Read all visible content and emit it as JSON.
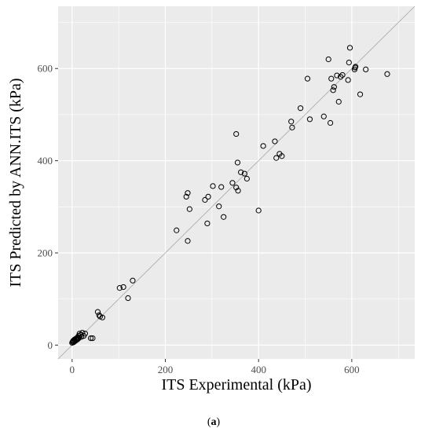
{
  "chart_data": {
    "type": "scatter",
    "xlabel": "ITS Experimental (kPa)",
    "ylabel": "ITS Predicted by ANN.ITS (kPa)",
    "caption_prefix": "(",
    "caption_letter": "a",
    "caption_suffix": ")",
    "xlim": [
      -30,
      735
    ],
    "ylim": [
      -30,
      735
    ],
    "x_ticks": [
      0,
      200,
      400,
      600
    ],
    "y_ticks": [
      0,
      200,
      400,
      600
    ],
    "grid": true,
    "reference_line": "y = x",
    "colors": {
      "panel": "#ebebeb",
      "grid": "#ffffff",
      "reference_line": "#a6a6a6",
      "points": "#000000"
    },
    "points": [
      [
        0,
        5
      ],
      [
        1,
        7
      ],
      [
        2,
        9
      ],
      [
        3,
        6
      ],
      [
        3,
        10
      ],
      [
        4,
        8
      ],
      [
        5,
        12
      ],
      [
        6,
        10
      ],
      [
        7,
        9
      ],
      [
        8,
        14
      ],
      [
        9,
        13
      ],
      [
        10,
        15
      ],
      [
        11,
        12
      ],
      [
        12,
        17
      ],
      [
        13,
        14
      ],
      [
        14,
        20
      ],
      [
        15,
        16
      ],
      [
        16,
        25
      ],
      [
        18,
        22
      ],
      [
        20,
        18
      ],
      [
        22,
        27
      ],
      [
        25,
        20
      ],
      [
        28,
        25
      ],
      [
        40,
        15
      ],
      [
        44,
        15
      ],
      [
        55,
        72
      ],
      [
        58,
        65
      ],
      [
        60,
        62
      ],
      [
        65,
        60
      ],
      [
        102,
        124
      ],
      [
        110,
        126
      ],
      [
        120,
        102
      ],
      [
        130,
        140
      ],
      [
        224,
        249
      ],
      [
        245,
        322
      ],
      [
        248,
        330
      ],
      [
        248,
        226
      ],
      [
        252,
        295
      ],
      [
        285,
        315
      ],
      [
        290,
        264
      ],
      [
        292,
        322
      ],
      [
        302,
        345
      ],
      [
        315,
        301
      ],
      [
        320,
        343
      ],
      [
        325,
        278
      ],
      [
        344,
        352
      ],
      [
        352,
        458
      ],
      [
        352,
        342
      ],
      [
        355,
        396
      ],
      [
        356,
        335
      ],
      [
        362,
        375
      ],
      [
        370,
        372
      ],
      [
        375,
        361
      ],
      [
        400,
        292
      ],
      [
        410,
        432
      ],
      [
        435,
        442
      ],
      [
        438,
        406
      ],
      [
        445,
        415
      ],
      [
        450,
        410
      ],
      [
        470,
        485
      ],
      [
        472,
        472
      ],
      [
        490,
        514
      ],
      [
        505,
        578
      ],
      [
        510,
        490
      ],
      [
        540,
        496
      ],
      [
        550,
        620
      ],
      [
        554,
        482
      ],
      [
        556,
        578
      ],
      [
        560,
        553
      ],
      [
        562,
        560
      ],
      [
        568,
        585
      ],
      [
        572,
        528
      ],
      [
        576,
        582
      ],
      [
        580,
        586
      ],
      [
        592,
        575
      ],
      [
        594,
        613
      ],
      [
        596,
        645
      ],
      [
        606,
        598
      ],
      [
        607,
        602
      ],
      [
        608,
        604
      ],
      [
        618,
        544
      ],
      [
        630,
        598
      ],
      [
        676,
        588
      ]
    ]
  }
}
